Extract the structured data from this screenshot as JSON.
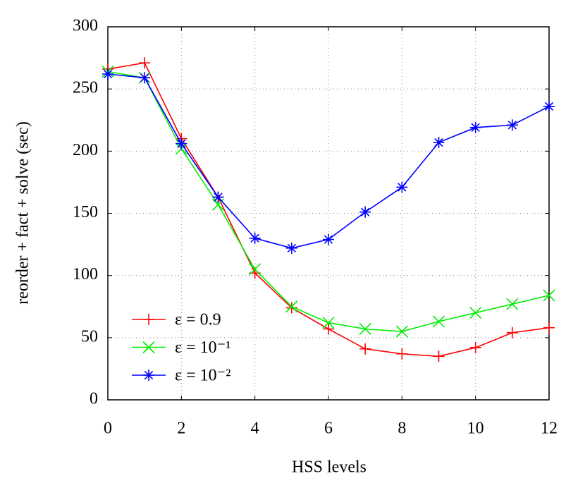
{
  "chart_data": {
    "type": "line",
    "x_label": "HSS levels",
    "y_label": "reorder + fact + solve (sec)",
    "x": [
      0,
      1,
      2,
      3,
      4,
      5,
      6,
      7,
      8,
      9,
      10,
      11,
      12
    ],
    "series": [
      {
        "name": "ε = 0.9",
        "color": "#ff0000",
        "marker": "plus",
        "values": [
          266,
          271,
          210,
          163,
          102,
          74,
          57,
          41,
          37,
          35,
          42,
          54,
          58
        ]
      },
      {
        "name": "ε = 10⁻¹",
        "color": "#00ee00",
        "marker": "cross",
        "values": [
          264,
          259,
          202,
          157,
          105,
          75,
          62,
          57,
          55,
          63,
          70,
          77,
          84
        ]
      },
      {
        "name": "ε = 10⁻²",
        "color": "#0000ff",
        "marker": "star",
        "values": [
          262,
          259,
          206,
          163,
          130,
          122,
          129,
          151,
          171,
          207,
          219,
          221,
          236
        ]
      }
    ],
    "xlim": [
      0,
      12
    ],
    "xticks": [
      0,
      2,
      4,
      6,
      8,
      10,
      12
    ],
    "ylim": [
      0,
      300
    ],
    "yticks": [
      0,
      50,
      100,
      150,
      200,
      250,
      300
    ],
    "grid": true,
    "legend": "lower left"
  }
}
